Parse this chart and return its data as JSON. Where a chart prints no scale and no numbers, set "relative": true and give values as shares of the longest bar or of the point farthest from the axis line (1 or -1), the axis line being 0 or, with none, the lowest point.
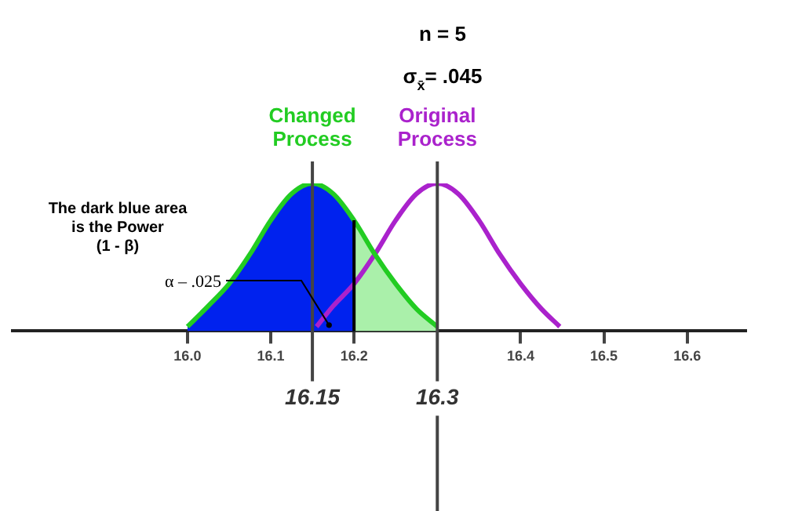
{
  "chart_data": {
    "type": "line",
    "title": "n = 5",
    "subtitle": "σ$_{x̄}$= .045",
    "relative": true,
    "xlim": [
      15.79,
      16.67
    ],
    "xticks": [
      {
        "value": 16,
        "label": "16.0"
      },
      16.1,
      16.2,
      16.4,
      16.5,
      16.6
    ],
    "series": [
      {
        "type": "area",
        "color": "#0022ee",
        "x": [
          16.0,
          16.025,
          16.05,
          16.075,
          16.1,
          16.125,
          16.15,
          16.175,
          16.2
        ],
        "values": [
          0.03,
          0.17,
          0.32,
          0.52,
          0.75,
          0.93,
          1,
          0.93,
          0.75
        ]
      },
      {
        "type": "area",
        "color": "#aaf0aa",
        "x": [
          16.2,
          16.225,
          16.25,
          16.275,
          16.3
        ],
        "values": [
          0.75,
          0.52,
          0.32,
          0.15,
          0.03
        ]
      },
      {
        "type": "line",
        "name": "Changed Process",
        "color": "#22cc22",
        "x": [
          16.0,
          16.025,
          16.05,
          16.075,
          16.1,
          16.125,
          16.15,
          16.175,
          16.2,
          16.225,
          16.25,
          16.275,
          16.3
        ],
        "values": [
          0.03,
          0.17,
          0.32,
          0.52,
          0.75,
          0.93,
          1,
          0.93,
          0.75,
          0.52,
          0.32,
          0.15,
          0.03
        ]
      },
      {
        "type": "line",
        "name": "Original Process",
        "color": "#aa22cc",
        "x": [
          16.155,
          16.175,
          16.2,
          16.225,
          16.25,
          16.275,
          16.3,
          16.325,
          16.35,
          16.375,
          16.4,
          16.425,
          16.447
        ],
        "values": [
          0.03,
          0.17,
          0.32,
          0.52,
          0.75,
          0.93,
          1,
          0.93,
          0.75,
          0.52,
          0.32,
          0.15,
          0.03
        ]
      }
    ],
    "ref_lines": [
      {
        "axis": "x",
        "value": 16.15,
        "label": "16.15",
        "color": "#444444"
      },
      {
        "axis": "x",
        "value": 16.3,
        "label": "16.3",
        "color": "#444444"
      },
      {
        "axis": "x",
        "value": 16.2,
        "color": "#000000"
      }
    ],
    "annotations": [
      "The dark blue area\nis the Power\n(1 - β)",
      {
        "text": "α – .025",
        "x": 16.17,
        "y": 0.04
      }
    ]
  }
}
